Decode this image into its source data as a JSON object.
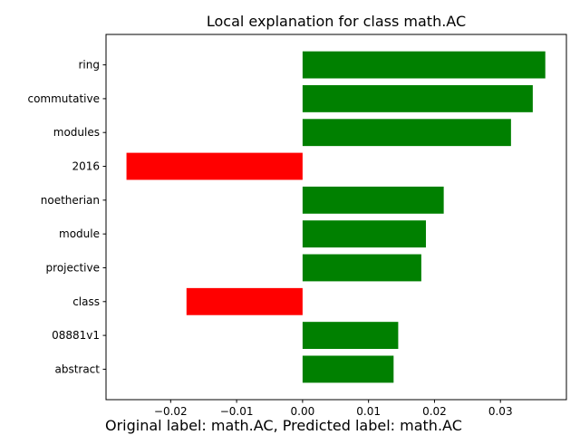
{
  "chart_data": {
    "type": "bar",
    "orientation": "horizontal",
    "title": "Local explanation for class math.AC",
    "xlabel": "",
    "ylabel": "",
    "categories": [
      "ring",
      "commutative",
      "modules",
      "2016",
      "noetherian",
      "module",
      "projective",
      "class",
      "08881v1",
      "abstract"
    ],
    "values": [
      0.0368,
      0.0349,
      0.0316,
      -0.0267,
      0.0214,
      0.0187,
      0.018,
      -0.0176,
      0.0145,
      0.0138
    ],
    "positive_color": "#008000",
    "negative_color": "#ff0000",
    "xlim": [
      -0.0298,
      0.04
    ],
    "xticks": [
      -0.02,
      -0.01,
      0.0,
      0.01,
      0.02,
      0.03
    ],
    "xtick_labels": [
      "−0.02",
      "−0.01",
      "0.00",
      "0.01",
      "0.02",
      "0.03"
    ],
    "grid": false,
    "legend": "none"
  },
  "caption": "Original label: math.AC, Predicted label: math.AC"
}
